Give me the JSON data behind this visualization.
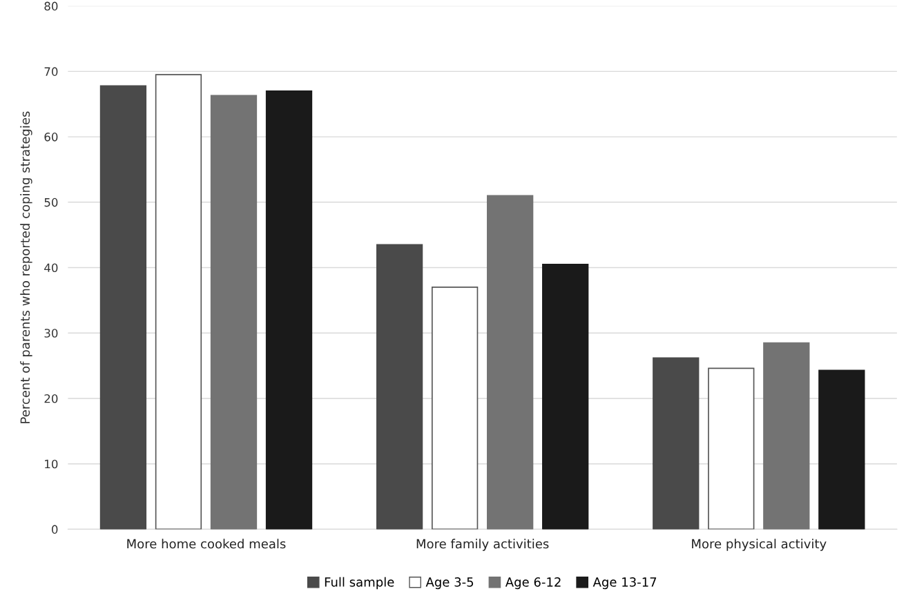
{
  "chart_data": {
    "type": "bar",
    "ylabel": "Percent of parents who reported coping strategies",
    "categories": [
      "More home cooked meals",
      "More family activities",
      "More physical activity"
    ],
    "series": [
      {
        "name": "Full sample",
        "color": "#4a4a4a",
        "values": [
          67.8,
          43.5,
          26.2
        ]
      },
      {
        "name": "Age 3-5",
        "color": "#ffffff",
        "values": [
          69.5,
          37.0,
          24.6
        ]
      },
      {
        "name": "Age 6-12",
        "color": "#737373",
        "values": [
          66.3,
          51.0,
          28.5
        ]
      },
      {
        "name": "Age 13-17",
        "color": "#1a1a1a",
        "values": [
          67.0,
          40.5,
          24.3
        ]
      }
    ],
    "ylim": [
      0,
      80
    ],
    "yticks": [
      0,
      10,
      20,
      30,
      40,
      50,
      60,
      70,
      80
    ],
    "grid": "y",
    "legend": "bottom"
  }
}
